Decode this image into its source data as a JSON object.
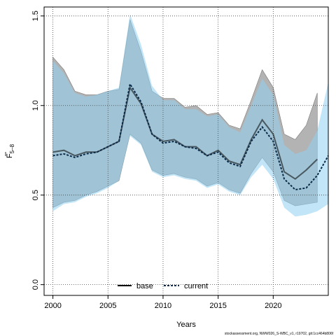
{
  "chart_data": {
    "type": "line",
    "xlabel": "Years",
    "ylabel_main": "F",
    "ylabel_sub": "5–8",
    "xlim": [
      1999.2,
      2025.0
    ],
    "ylim": [
      -0.06,
      1.55
    ],
    "x_ticks": [
      2000,
      2005,
      2010,
      2015,
      2020
    ],
    "y_ticks": [
      0.0,
      0.5,
      1.0,
      1.5
    ],
    "x_tick_labels": [
      "2000",
      "2005",
      "2010",
      "2015",
      "2020"
    ],
    "y_tick_labels": [
      "0.0",
      "0.5",
      "1.0",
      "1.5"
    ],
    "grid": true,
    "legend_position": "bottom",
    "series": [
      {
        "name": "base",
        "style": "solid",
        "line_color": "#000000",
        "band_color": "#9a9a9a",
        "x": [
          2000,
          2001,
          2002,
          2003,
          2004,
          2005,
          2006,
          2007,
          2008,
          2009,
          2010,
          2011,
          2012,
          2013,
          2014,
          2015,
          2016,
          2017,
          2018,
          2019,
          2020,
          2021,
          2022,
          2023,
          2024
        ],
        "values": [
          0.74,
          0.75,
          0.72,
          0.74,
          0.74,
          0.77,
          0.8,
          1.1,
          1.01,
          0.84,
          0.8,
          0.81,
          0.77,
          0.77,
          0.72,
          0.75,
          0.69,
          0.67,
          0.81,
          0.92,
          0.84,
          0.63,
          0.59,
          0.64,
          0.7
        ],
        "upper": [
          1.27,
          1.2,
          1.08,
          1.06,
          1.06,
          1.08,
          1.09,
          1.48,
          1.3,
          1.08,
          1.04,
          1.04,
          0.99,
          1.0,
          0.95,
          0.96,
          0.89,
          0.87,
          1.03,
          1.2,
          1.1,
          0.84,
          0.81,
          0.89,
          1.07
        ],
        "lower": [
          0.43,
          0.46,
          0.47,
          0.5,
          0.52,
          0.55,
          0.58,
          0.84,
          0.79,
          0.64,
          0.61,
          0.62,
          0.6,
          0.59,
          0.55,
          0.57,
          0.53,
          0.51,
          0.62,
          0.71,
          0.63,
          0.47,
          0.44,
          0.45,
          0.46
        ]
      },
      {
        "name": "current",
        "style": "dashed",
        "line_color": "#0b2a4a",
        "band_color": "#8fd0f0",
        "x": [
          2000,
          2001,
          2002,
          2003,
          2004,
          2005,
          2006,
          2007,
          2008,
          2009,
          2010,
          2011,
          2012,
          2013,
          2014,
          2015,
          2016,
          2017,
          2018,
          2019,
          2020,
          2021,
          2022,
          2023,
          2024,
          2025
        ],
        "values": [
          0.72,
          0.73,
          0.71,
          0.73,
          0.74,
          0.77,
          0.8,
          1.12,
          1.02,
          0.84,
          0.79,
          0.8,
          0.77,
          0.76,
          0.72,
          0.74,
          0.68,
          0.66,
          0.8,
          0.88,
          0.8,
          0.59,
          0.53,
          0.54,
          0.61,
          0.72
        ],
        "upper": [
          1.25,
          1.18,
          1.07,
          1.05,
          1.06,
          1.08,
          1.1,
          1.51,
          1.34,
          1.11,
          1.03,
          1.03,
          0.98,
          0.98,
          0.94,
          0.95,
          0.88,
          0.85,
          1.0,
          1.15,
          1.06,
          0.78,
          0.73,
          0.75,
          0.86,
          1.13
        ],
        "lower": [
          0.41,
          0.45,
          0.46,
          0.49,
          0.51,
          0.54,
          0.58,
          0.83,
          0.78,
          0.63,
          0.6,
          0.61,
          0.59,
          0.58,
          0.54,
          0.56,
          0.52,
          0.5,
          0.6,
          0.67,
          0.59,
          0.43,
          0.38,
          0.39,
          0.41,
          0.45
        ]
      }
    ],
    "footer": "stockassessment.org, NWW026_S-WBC_v1, r19702, git:1cc464b806f"
  }
}
